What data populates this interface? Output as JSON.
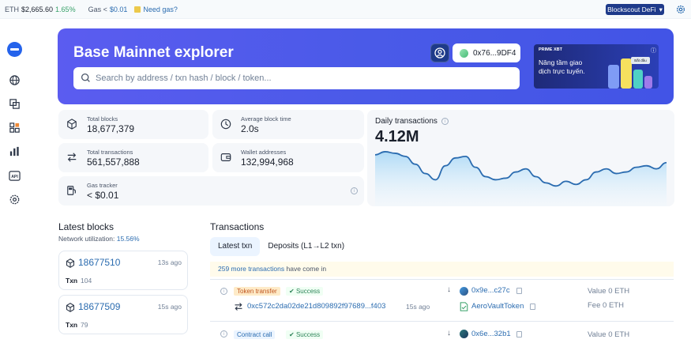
{
  "topbar": {
    "eth_label": "ETH",
    "eth_price": "$2,665.60",
    "eth_change": "1.65%",
    "gas_label": "Gas <",
    "gas_value": "$0.01",
    "need_gas": "Need gas?",
    "network_button": "Blockscout DeFi"
  },
  "hero": {
    "title": "Base Mainnet explorer",
    "search_placeholder": "Search by address / txn hash / block / token...",
    "wallet_address": "0x76...9DF4"
  },
  "ad": {
    "brand": "PRIME XBT",
    "text": "Nâng tầm giao dịch trực tuyến.",
    "cta": "Bắt đầu"
  },
  "stats": {
    "total_blocks_label": "Total blocks",
    "total_blocks_value": "18,677,379",
    "avg_block_time_label": "Average block time",
    "avg_block_time_value": "2.0s",
    "total_txns_label": "Total transactions",
    "total_txns_value": "561,557,888",
    "wallet_addresses_label": "Wallet addresses",
    "wallet_addresses_value": "132,994,968",
    "gas_tracker_label": "Gas tracker",
    "gas_tracker_value": "< $0.01"
  },
  "daily_chart": {
    "title": "Daily transactions",
    "value": "4.12M"
  },
  "chart_data": {
    "type": "area",
    "title": "Daily transactions",
    "values": [
      62,
      66,
      64,
      60,
      50,
      38,
      30,
      48,
      58,
      60,
      46,
      34,
      30,
      32,
      40,
      44,
      34,
      26,
      22,
      28,
      24,
      30,
      40,
      44,
      38,
      40,
      46,
      48,
      44,
      52
    ]
  },
  "latest_blocks": {
    "title": "Latest blocks",
    "util_label": "Network utilization:",
    "util_value": "15.56%",
    "items": [
      {
        "number": "18677510",
        "time": "13s ago",
        "txn_label": "Txn",
        "txn_count": "104"
      },
      {
        "number": "18677509",
        "time": "15s ago",
        "txn_label": "Txn",
        "txn_count": "79"
      }
    ]
  },
  "transactions": {
    "title": "Transactions",
    "tabs": [
      "Latest txn",
      "Deposits (L1→L2 txn)"
    ],
    "notice_count": "259 more transactions",
    "notice_rest": "have come in",
    "rows": [
      {
        "type": "Token transfer",
        "status": "Success",
        "hash": "0xc572c2da02de21d809892f97689...f403",
        "time": "15s ago",
        "from": "0x9e...c27c",
        "to": "AeroVaultToken",
        "value_label": "Value",
        "value": "0 ETH",
        "fee_label": "Fee",
        "fee": "0 ETH"
      },
      {
        "type": "Contract call",
        "status": "Success",
        "from": "0x6e...32b1",
        "value_label": "Value",
        "value": "0 ETH"
      }
    ]
  }
}
